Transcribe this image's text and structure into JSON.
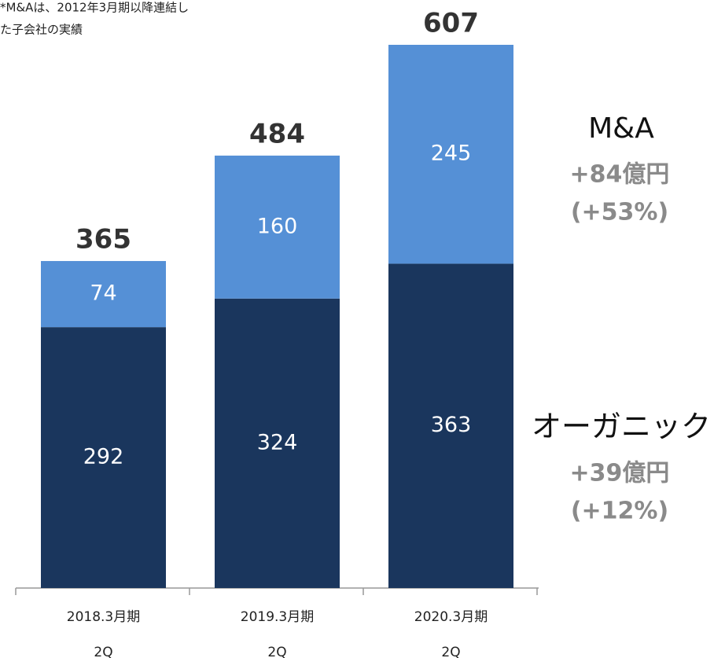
{
  "chart_data": {
    "type": "stacked_bar",
    "note": [
      "*M&Aは、2012年3月期以降連結し",
      "た子会社の実績"
    ],
    "categories": [
      [
        "2018.3月期",
        "2Q"
      ],
      [
        "2019.3月期",
        "2Q"
      ],
      [
        "2020.3月期",
        "2Q"
      ]
    ],
    "series": [
      {
        "name": "オーガニック",
        "color": "#1a365d",
        "values": [
          292,
          324,
          363
        ]
      },
      {
        "name": "M&A",
        "color": "#5590d6",
        "values": [
          74,
          160,
          245
        ]
      }
    ],
    "totals": [
      365,
      484,
      607
    ],
    "annotations": [
      {
        "series": "M&A",
        "lines": [
          "+84億円",
          "(+53%)"
        ]
      },
      {
        "series": "オーガニック",
        "lines": [
          "+39億円",
          "(+12%)"
        ]
      }
    ]
  }
}
